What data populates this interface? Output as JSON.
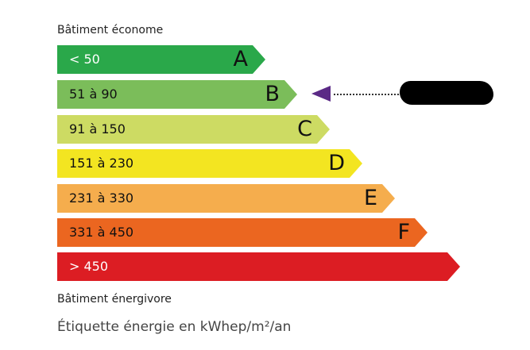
{
  "top_caption": "Bâtiment économe",
  "bottom_caption": "Bâtiment énergivore",
  "footer": "Étiquette énergie en kWhep/m²/an",
  "classes": [
    {
      "letter": "A",
      "range": "< 50",
      "color": "#2aa84a",
      "text_color": "#ffffff"
    },
    {
      "letter": "B",
      "range": "51 à 90",
      "color": "#7bbd5a",
      "text_color": "#111111"
    },
    {
      "letter": "C",
      "range": "91 à 150",
      "color": "#cddb63",
      "text_color": "#111111"
    },
    {
      "letter": "D",
      "range": "151 à 230",
      "color": "#f3e521",
      "text_color": "#111111"
    },
    {
      "letter": "E",
      "range": "231 à 330",
      "color": "#f5ad4d",
      "text_color": "#111111"
    },
    {
      "letter": "F",
      "range": "331 à 450",
      "color": "#eb6620",
      "text_color": "#111111"
    },
    {
      "letter": "",
      "range": "> 450",
      "color": "#dc1d23",
      "text_color": "#ffffff"
    }
  ],
  "indicator": {
    "class": "B",
    "color": "#5b2a86",
    "value_redacted": true
  }
}
